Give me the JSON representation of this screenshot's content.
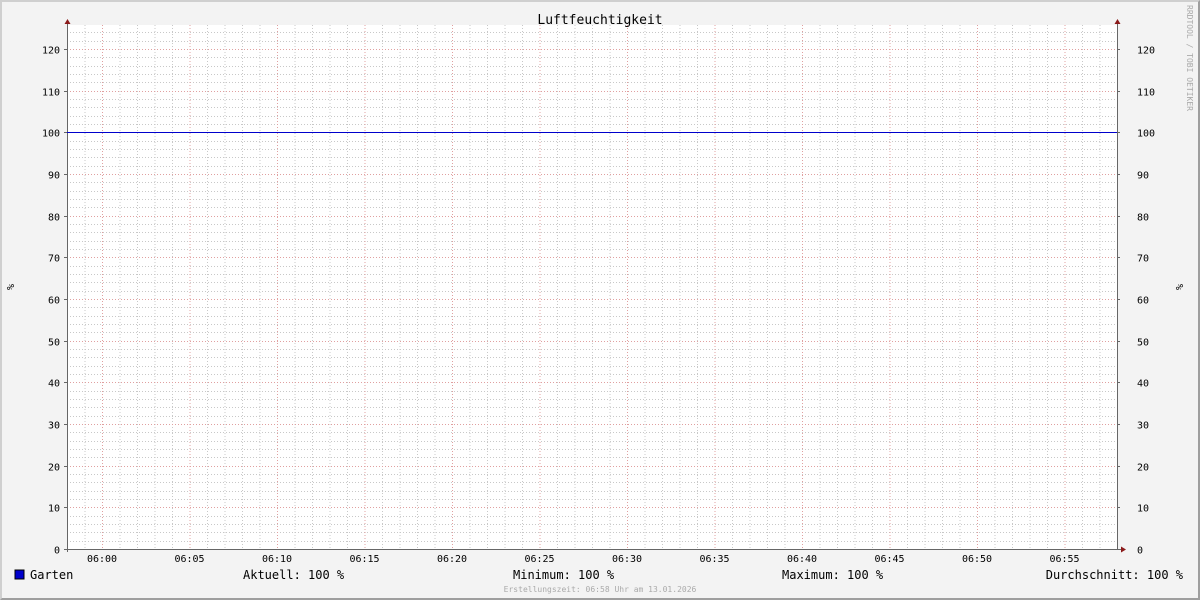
{
  "chart_data": {
    "type": "line",
    "title": "Luftfeuchtigkeit",
    "ylabel": "%",
    "ylabel_right": "%",
    "ylim": [
      0,
      125.8
    ],
    "yticks": [
      0,
      10,
      20,
      30,
      40,
      50,
      60,
      70,
      80,
      90,
      100,
      110,
      120
    ],
    "xlim": [
      "05:58",
      "06:58"
    ],
    "xticks": [
      "06:00",
      "06:05",
      "06:10",
      "06:15",
      "06:20",
      "06:25",
      "06:30",
      "06:35",
      "06:40",
      "06:45",
      "06:50",
      "06:55"
    ],
    "grid": true,
    "series": [
      {
        "name": "Garten",
        "color": "#0000cc",
        "x": [
          "05:58",
          "06:58"
        ],
        "values": [
          100,
          100
        ]
      }
    ],
    "legend": {
      "name": "Garten",
      "current": "Aktuell: 100 %",
      "minimum": "Minimum: 100 %",
      "maximum": "Maximum: 100 %",
      "average": "Durchschnitt: 100 %"
    },
    "watermark": "RRDTOOL / TOBI OETIKER",
    "footer": "Erstellungszeit: 06:58 Uhr am 13.01.2026"
  }
}
